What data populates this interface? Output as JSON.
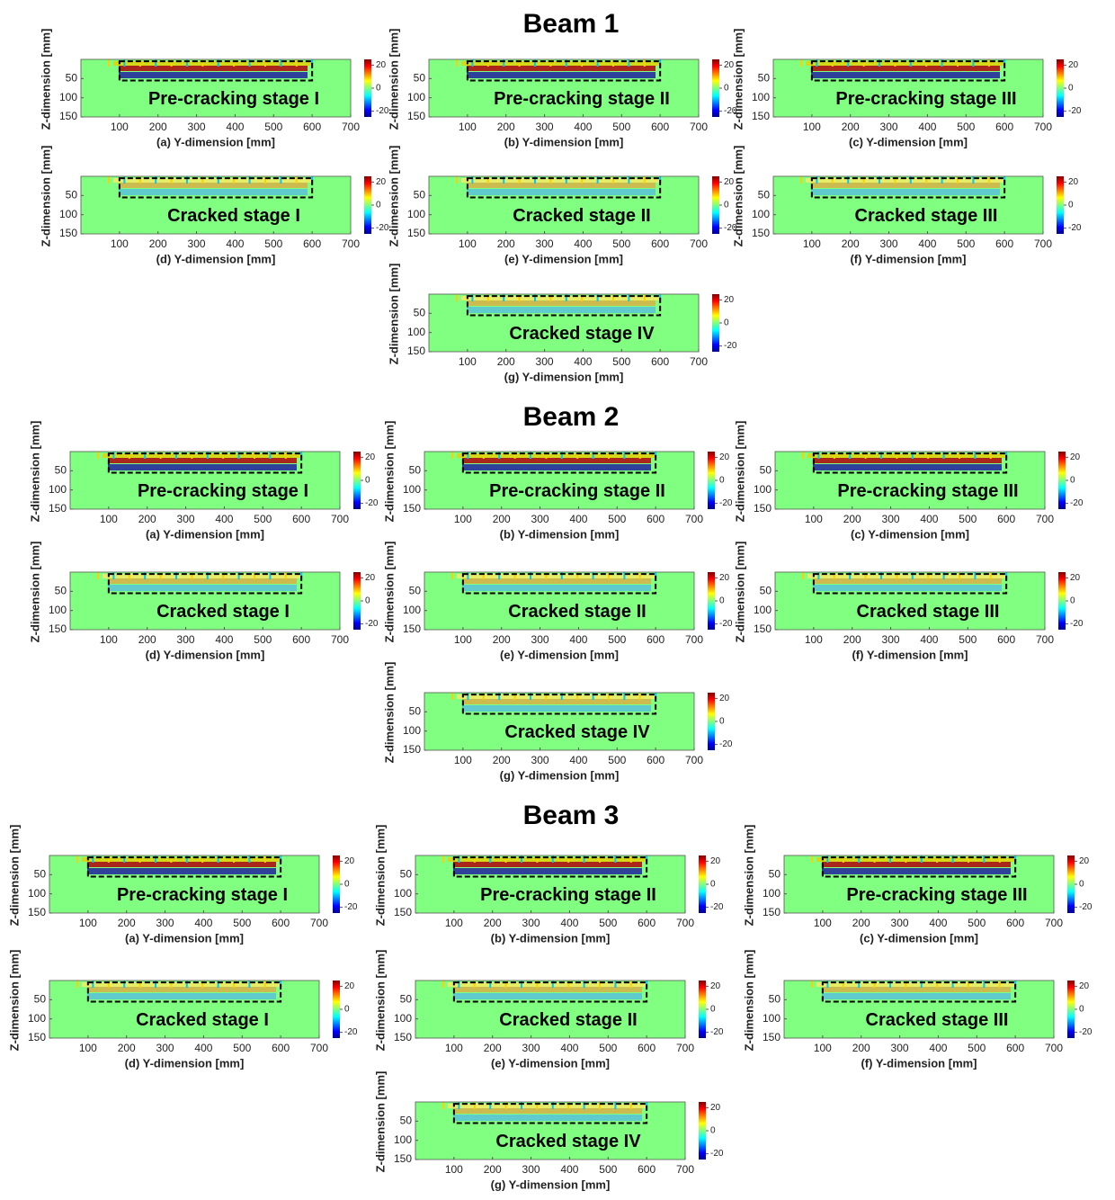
{
  "figure": {
    "axes": {
      "xlim": [
        0,
        700
      ],
      "xticks": [
        100,
        200,
        300,
        400,
        500,
        600,
        700
      ],
      "ylim": [
        0,
        150
      ],
      "yticks": [
        50,
        100,
        150
      ],
      "ylabel": "Z-dimension [mm]",
      "clim": [
        -25,
        25
      ],
      "cticks": [
        20,
        0,
        -20
      ]
    },
    "beams": [
      {
        "title": "Beam 1",
        "panels": [
          {
            "stage": "Pre-cracking stage I",
            "xlabel": "(a) Y-dimension [mm]"
          },
          {
            "stage": "Pre-cracking stage II",
            "xlabel": "(b) Y-dimension [mm]"
          },
          {
            "stage": "Pre-cracking stage III",
            "xlabel": "(c) Y-dimension [mm]"
          },
          {
            "stage": "Cracked stage I",
            "xlabel": "(d) Y-dimension [mm]"
          },
          {
            "stage": "Cracked stage II",
            "xlabel": "(e) Y-dimension [mm]"
          },
          {
            "stage": "Cracked stage III",
            "xlabel": "(f) Y-dimension [mm]"
          },
          {
            "stage": "Cracked stage IV",
            "xlabel": "(g) Y-dimension [mm]"
          }
        ]
      },
      {
        "title": "Beam 2",
        "panels": [
          {
            "stage": "Pre-cracking stage I",
            "xlabel": "(a) Y-dimension [mm]"
          },
          {
            "stage": "Pre-cracking stage II",
            "xlabel": "(b) Y-dimension [mm]"
          },
          {
            "stage": "Pre-cracking stage III",
            "xlabel": "(c) Y-dimension [mm]"
          },
          {
            "stage": "Cracked stage I",
            "xlabel": "(d) Y-dimension [mm]"
          },
          {
            "stage": "Cracked stage II",
            "xlabel": "(e) Y-dimension [mm]"
          },
          {
            "stage": "Cracked stage III",
            "xlabel": "(f) Y-dimension [mm]"
          },
          {
            "stage": "Cracked stage IV",
            "xlabel": "(g) Y-dimension [mm]"
          }
        ]
      },
      {
        "title": "Beam 3",
        "panels": [
          {
            "stage": "Pre-cracking stage I",
            "xlabel": "(a) Y-dimension [mm]"
          },
          {
            "stage": "Pre-cracking stage II",
            "xlabel": "(b) Y-dimension [mm]"
          },
          {
            "stage": "Pre-cracking stage III",
            "xlabel": "(c) Y-dimension [mm]"
          },
          {
            "stage": "Cracked stage I",
            "xlabel": "(d) Y-dimension [mm]"
          },
          {
            "stage": "Cracked stage II",
            "xlabel": "(e) Y-dimension [mm]"
          },
          {
            "stage": "Cracked stage III",
            "xlabel": "(f) Y-dimension [mm]"
          },
          {
            "stage": "Cracked stage IV",
            "xlabel": "(g) Y-dimension [mm]"
          }
        ]
      }
    ]
  }
}
